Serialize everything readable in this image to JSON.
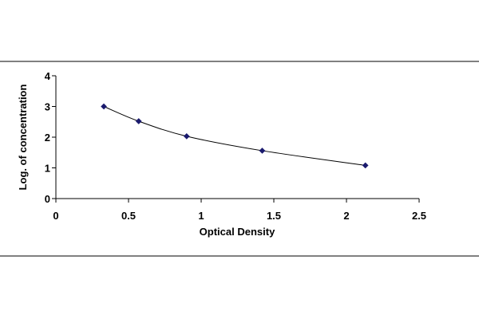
{
  "chart_data": {
    "type": "scatter",
    "title": "",
    "xlabel": "Optical Density",
    "ylabel": "Log. of concentration",
    "xlim": [
      0,
      2.5
    ],
    "ylim": [
      0,
      4
    ],
    "xticks": [
      0,
      0.5,
      1,
      1.5,
      2,
      2.5
    ],
    "yticks": [
      0,
      1,
      2,
      3,
      4
    ],
    "xtick_labels": [
      "0",
      "0.5",
      "1",
      "1.5",
      "2",
      "2.5"
    ],
    "ytick_labels": [
      "0",
      "1",
      "2",
      "3",
      "4"
    ],
    "grid": false,
    "legend": "none",
    "trendline": "smooth curve through points",
    "series": [
      {
        "x": [
          0.33,
          0.57,
          0.9,
          1.42,
          2.13
        ],
        "y": [
          3.0,
          2.52,
          2.03,
          1.56,
          1.08
        ],
        "marker": "diamond",
        "color": "#1a1a6e"
      }
    ]
  }
}
